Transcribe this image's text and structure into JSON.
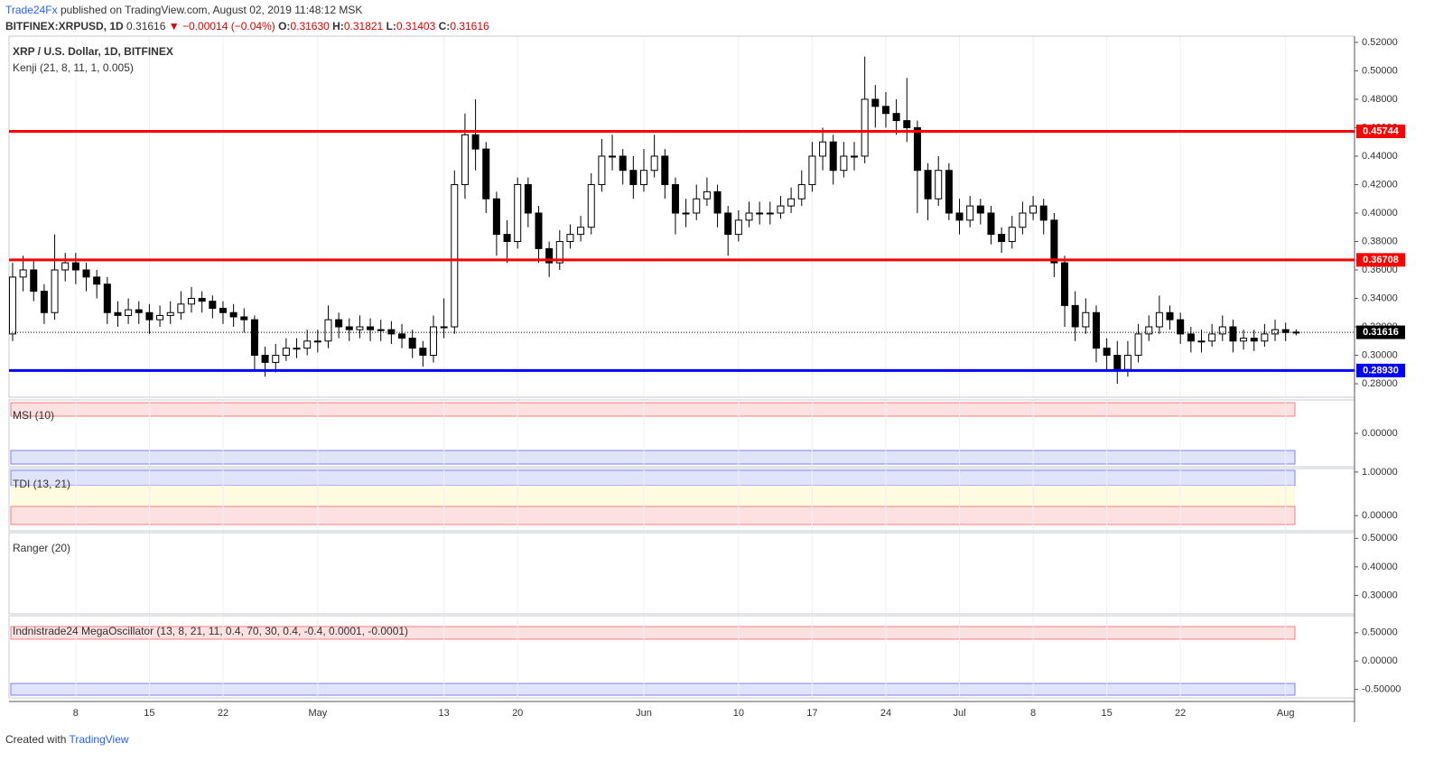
{
  "header": {
    "author": "Trade24Fx",
    "published": "published on TradingView.com, August 02, 2019 11:48:12 MSK",
    "symbol": "BITFINEX:XRPUSD, 1D",
    "last": "0.31616",
    "arrow": "▼",
    "change": "−0.00014 (−0.04%)",
    "ohlc": [
      {
        "label": "O:",
        "value": "0.31630"
      },
      {
        "label": "H:",
        "value": "0.31821"
      },
      {
        "label": "L:",
        "value": "0.31403"
      },
      {
        "label": "C:",
        "value": "0.31616"
      }
    ]
  },
  "footer": {
    "created": "Created with",
    "brand": "TradingView"
  },
  "chart_data": [
    {
      "type": "candlestick",
      "title": "XRP / U.S. Dollar, 1D, BITFINEX",
      "subtitle": "Kenji (21, 8, 11, 1, 0.005)",
      "xlim": [
        -0.34,
        127.55
      ],
      "ylim": [
        0.2705,
        0.5244
      ],
      "xticks": [
        {
          "value": 6,
          "label": "8"
        },
        {
          "value": 13,
          "label": "15"
        },
        {
          "value": 20,
          "label": "22"
        },
        {
          "value": 29,
          "label": "May"
        },
        {
          "value": 41,
          "label": "13"
        },
        {
          "value": 48,
          "label": "20"
        },
        {
          "value": 60,
          "label": "Jun"
        },
        {
          "value": 69,
          "label": "10"
        },
        {
          "value": 76,
          "label": "17"
        },
        {
          "value": 83,
          "label": "24"
        },
        {
          "value": 90,
          "label": "Jul"
        },
        {
          "value": 97,
          "label": "8"
        },
        {
          "value": 104,
          "label": "15"
        },
        {
          "value": 111,
          "label": "22"
        },
        {
          "value": 121,
          "label": "Aug"
        }
      ],
      "yticks": [
        {
          "value": 0.28,
          "label": "0.28000"
        },
        {
          "value": 0.3,
          "label": "0.30000"
        },
        {
          "value": 0.32,
          "label": "0.32000"
        },
        {
          "value": 0.34,
          "label": "0.34000"
        },
        {
          "value": 0.36,
          "label": "0.36000"
        },
        {
          "value": 0.38,
          "label": "0.38000"
        },
        {
          "value": 0.4,
          "label": "0.40000"
        },
        {
          "value": 0.42,
          "label": "0.42000"
        },
        {
          "value": 0.44,
          "label": "0.44000"
        },
        {
          "value": 0.46,
          "label": "0.46000"
        },
        {
          "value": 0.48,
          "label": "0.48000"
        },
        {
          "value": 0.5,
          "label": "0.50000"
        },
        {
          "value": 0.52,
          "label": "0.52000"
        }
      ],
      "levels": [
        {
          "value": 0.45744,
          "label": "0.45744",
          "color": "#ff0000"
        },
        {
          "value": 0.36708,
          "label": "0.36708",
          "color": "#ff0000"
        },
        {
          "value": 0.2893,
          "label": "0.28930",
          "color": "#0000ff"
        }
      ],
      "last": {
        "value": 0.31616,
        "label": "0.31616"
      },
      "open": [
        0.315,
        0.355,
        0.36,
        0.345,
        0.33,
        0.36,
        0.365,
        0.36,
        0.355,
        0.35,
        0.33,
        0.328,
        0.332,
        0.33,
        0.325,
        0.328,
        0.33,
        0.336,
        0.34,
        0.338,
        0.333,
        0.33,
        0.327,
        0.325,
        0.3,
        0.295,
        0.3,
        0.305,
        0.305,
        0.31,
        0.31,
        0.325,
        0.32,
        0.318,
        0.32,
        0.318,
        0.318,
        0.315,
        0.312,
        0.305,
        0.3,
        0.32,
        0.32,
        0.42,
        0.455,
        0.445,
        0.41,
        0.385,
        0.38,
        0.42,
        0.4,
        0.375,
        0.365,
        0.38,
        0.385,
        0.39,
        0.42,
        0.44,
        0.44,
        0.43,
        0.42,
        0.43,
        0.44,
        0.42,
        0.4,
        0.4,
        0.41,
        0.415,
        0.4,
        0.385,
        0.395,
        0.4,
        0.4,
        0.4,
        0.405,
        0.41,
        0.42,
        0.44,
        0.45,
        0.43,
        0.44,
        0.44,
        0.48,
        0.475,
        0.47,
        0.465,
        0.46,
        0.43,
        0.41,
        0.43,
        0.4,
        0.395,
        0.405,
        0.4,
        0.385,
        0.38,
        0.39,
        0.4,
        0.405,
        0.395,
        0.365,
        0.335,
        0.32,
        0.33,
        0.305,
        0.3,
        0.29,
        0.3,
        0.315,
        0.32,
        0.33,
        0.325,
        0.315,
        0.31,
        0.31,
        0.315,
        0.32,
        0.31,
        0.312,
        0.31,
        0.315,
        0.318,
        0.3163
      ],
      "close": [
        0.355,
        0.36,
        0.345,
        0.33,
        0.36,
        0.365,
        0.36,
        0.355,
        0.35,
        0.33,
        0.328,
        0.332,
        0.33,
        0.325,
        0.328,
        0.33,
        0.336,
        0.34,
        0.338,
        0.333,
        0.33,
        0.327,
        0.325,
        0.3,
        0.295,
        0.3,
        0.305,
        0.305,
        0.31,
        0.31,
        0.325,
        0.32,
        0.318,
        0.32,
        0.318,
        0.318,
        0.315,
        0.312,
        0.305,
        0.3,
        0.32,
        0.32,
        0.42,
        0.455,
        0.445,
        0.41,
        0.385,
        0.38,
        0.42,
        0.4,
        0.375,
        0.365,
        0.38,
        0.385,
        0.39,
        0.42,
        0.44,
        0.44,
        0.43,
        0.42,
        0.43,
        0.44,
        0.42,
        0.4,
        0.4,
        0.41,
        0.415,
        0.4,
        0.385,
        0.395,
        0.4,
        0.4,
        0.4,
        0.405,
        0.41,
        0.42,
        0.44,
        0.45,
        0.43,
        0.44,
        0.44,
        0.48,
        0.475,
        0.47,
        0.465,
        0.46,
        0.43,
        0.41,
        0.43,
        0.4,
        0.395,
        0.405,
        0.4,
        0.385,
        0.38,
        0.39,
        0.4,
        0.405,
        0.395,
        0.365,
        0.335,
        0.32,
        0.33,
        0.305,
        0.3,
        0.29,
        0.3,
        0.315,
        0.32,
        0.33,
        0.325,
        0.315,
        0.31,
        0.31,
        0.315,
        0.32,
        0.31,
        0.312,
        0.31,
        0.315,
        0.318,
        0.316,
        0.31616
      ],
      "high": [
        0.365,
        0.37,
        0.368,
        0.35,
        0.385,
        0.372,
        0.372,
        0.365,
        0.36,
        0.355,
        0.338,
        0.34,
        0.338,
        0.336,
        0.335,
        0.338,
        0.345,
        0.348,
        0.345,
        0.342,
        0.338,
        0.336,
        0.333,
        0.328,
        0.306,
        0.308,
        0.312,
        0.312,
        0.318,
        0.318,
        0.335,
        0.33,
        0.326,
        0.328,
        0.326,
        0.325,
        0.324,
        0.322,
        0.318,
        0.31,
        0.328,
        0.34,
        0.43,
        0.47,
        0.48,
        0.45,
        0.415,
        0.395,
        0.425,
        0.425,
        0.405,
        0.38,
        0.388,
        0.392,
        0.398,
        0.428,
        0.452,
        0.455,
        0.445,
        0.44,
        0.445,
        0.455,
        0.445,
        0.425,
        0.41,
        0.42,
        0.425,
        0.42,
        0.405,
        0.402,
        0.408,
        0.408,
        0.408,
        0.412,
        0.418,
        0.43,
        0.45,
        0.46,
        0.455,
        0.45,
        0.45,
        0.51,
        0.49,
        0.485,
        0.48,
        0.495,
        0.465,
        0.435,
        0.44,
        0.435,
        0.41,
        0.412,
        0.41,
        0.405,
        0.39,
        0.398,
        0.408,
        0.412,
        0.41,
        0.4,
        0.37,
        0.345,
        0.34,
        0.335,
        0.312,
        0.31,
        0.31,
        0.322,
        0.328,
        0.342,
        0.335,
        0.33,
        0.32,
        0.318,
        0.322,
        0.328,
        0.325,
        0.318,
        0.318,
        0.322,
        0.325,
        0.323,
        0.31821
      ],
      "low": [
        0.31,
        0.345,
        0.338,
        0.322,
        0.325,
        0.352,
        0.35,
        0.345,
        0.34,
        0.322,
        0.32,
        0.322,
        0.322,
        0.315,
        0.32,
        0.322,
        0.325,
        0.33,
        0.33,
        0.326,
        0.322,
        0.32,
        0.316,
        0.29,
        0.285,
        0.288,
        0.296,
        0.298,
        0.3,
        0.302,
        0.305,
        0.312,
        0.31,
        0.312,
        0.31,
        0.31,
        0.308,
        0.305,
        0.298,
        0.292,
        0.295,
        0.312,
        0.315,
        0.41,
        0.43,
        0.4,
        0.37,
        0.365,
        0.375,
        0.39,
        0.365,
        0.355,
        0.36,
        0.375,
        0.38,
        0.385,
        0.415,
        0.43,
        0.42,
        0.41,
        0.415,
        0.425,
        0.41,
        0.385,
        0.39,
        0.395,
        0.405,
        0.39,
        0.37,
        0.38,
        0.39,
        0.392,
        0.392,
        0.396,
        0.4,
        0.405,
        0.415,
        0.43,
        0.42,
        0.425,
        0.43,
        0.435,
        0.46,
        0.46,
        0.455,
        0.45,
        0.4,
        0.395,
        0.405,
        0.395,
        0.385,
        0.39,
        0.392,
        0.378,
        0.372,
        0.375,
        0.385,
        0.395,
        0.385,
        0.355,
        0.32,
        0.31,
        0.315,
        0.295,
        0.29,
        0.28,
        0.285,
        0.295,
        0.31,
        0.315,
        0.318,
        0.308,
        0.302,
        0.302,
        0.306,
        0.31,
        0.302,
        0.304,
        0.303,
        0.306,
        0.31,
        0.31,
        0.31403
      ]
    },
    {
      "type": "indicator",
      "title": "MSI (10)",
      "ylim": [
        -1,
        1
      ],
      "yticks": [
        {
          "value": 0,
          "label": "0.00000"
        }
      ]
    },
    {
      "type": "indicator",
      "title": "TDI (13, 21)",
      "ylim": [
        -0.35,
        1.08
      ],
      "yticks": [
        {
          "value": 1,
          "label": "1.00000"
        },
        {
          "value": 0,
          "label": "0.00000"
        }
      ]
    },
    {
      "type": "indicator",
      "title": "Ranger (20)",
      "ylim": [
        0.235,
        0.52
      ],
      "yticks": [
        {
          "value": 0.5,
          "label": "0.50000"
        },
        {
          "value": 0.4,
          "label": "0.40000"
        },
        {
          "value": 0.3,
          "label": "0.30000"
        }
      ]
    },
    {
      "type": "indicator",
      "title": "Indnistrade24 MegaOscillator (13, 8, 21, 11, 0.4, 70, 30, 0.4, -0.4, 0.0001, -0.0001)",
      "ylim": [
        -0.65,
        0.8
      ],
      "yticks": [
        {
          "value": 0.5,
          "label": "0.50000"
        },
        {
          "value": 0,
          "label": "0.00000"
        },
        {
          "value": -0.5,
          "label": "-0.50000"
        }
      ]
    }
  ]
}
